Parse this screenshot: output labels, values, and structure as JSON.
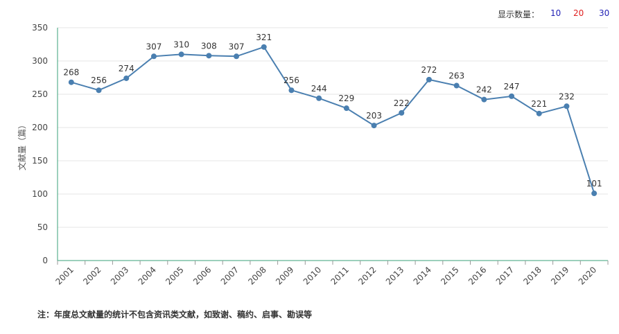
{
  "display_count": {
    "label": "显示数量：",
    "options": [
      "10",
      "20",
      "30"
    ]
  },
  "footnote": "注：年度总文献量的统计不包含资讯类文献，如致谢、稿约、启事、勘误等",
  "chart_data": {
    "type": "line",
    "ylabel": "文献量（篇）",
    "xlabel": "",
    "title": "",
    "ylim": [
      0,
      350
    ],
    "yticks": [
      0,
      50,
      100,
      150,
      200,
      250,
      300,
      350
    ],
    "categories": [
      "2001",
      "2002",
      "2003",
      "2004",
      "2005",
      "2006",
      "2007",
      "2008",
      "2009",
      "2010",
      "2011",
      "2012",
      "2013",
      "2014",
      "2015",
      "2016",
      "2017",
      "2018",
      "2019",
      "2020"
    ],
    "series": [
      {
        "values": [
          268,
          256,
          274,
          307,
          310,
          308,
          307,
          321,
          256,
          244,
          229,
          203,
          222,
          272,
          263,
          242,
          247,
          221,
          232,
          101
        ]
      }
    ],
    "grid": true,
    "line_color": "#4a7fb0",
    "axis_color": "#3aa17a"
  }
}
